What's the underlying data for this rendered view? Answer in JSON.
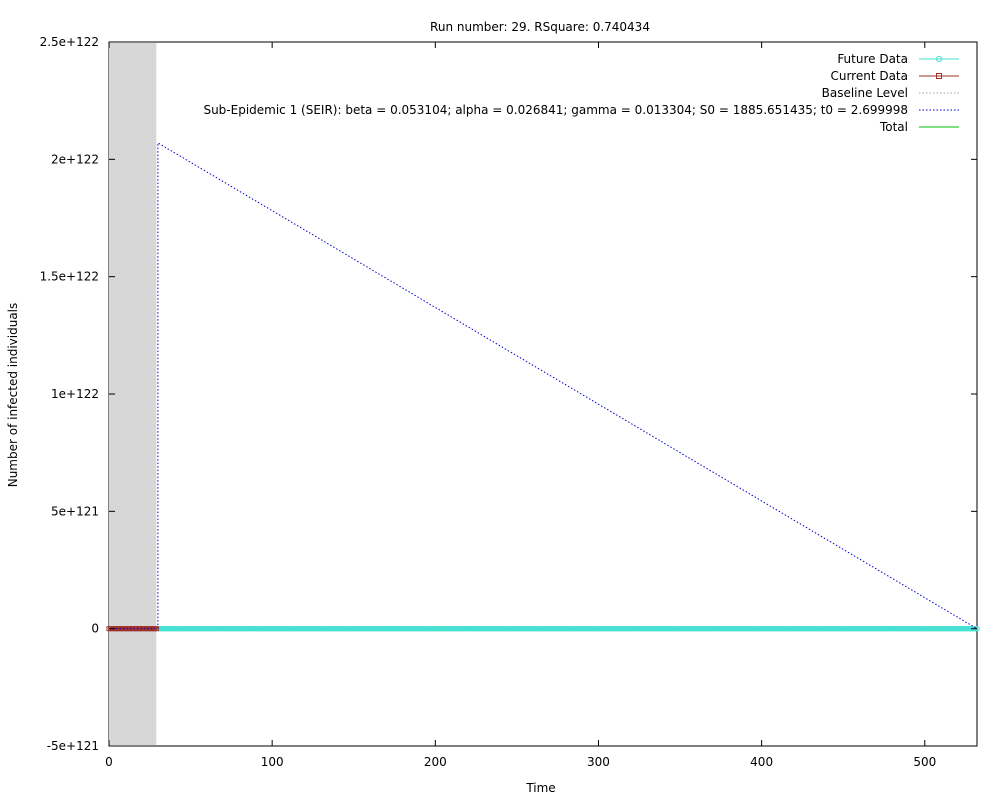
{
  "chart_data": {
    "type": "line",
    "title": "Run number: 29. RSquare: 0.740434",
    "xlabel": "Time",
    "ylabel": "Number of infected individuals",
    "xlim": [
      0,
      532
    ],
    "ylim": [
      -5e+121,
      2.5e+122
    ],
    "x_ticks": [
      {
        "value": 0,
        "label": "0"
      },
      {
        "value": 100,
        "label": "100"
      },
      {
        "value": 200,
        "label": "200"
      },
      {
        "value": 300,
        "label": "300"
      },
      {
        "value": 400,
        "label": "400"
      },
      {
        "value": 500,
        "label": "500"
      }
    ],
    "y_ticks": [
      {
        "value": -5e+121,
        "label": "-5e+121"
      },
      {
        "value": 0,
        "label": "0"
      },
      {
        "value": 5e+121,
        "label": "5e+121"
      },
      {
        "value": 1e+122,
        "label": "1e+122"
      },
      {
        "value": 1.5e+122,
        "label": "1.5e+122"
      },
      {
        "value": 2e+122,
        "label": "2e+122"
      },
      {
        "value": 2.5e+122,
        "label": "2.5e+122"
      }
    ],
    "grid": false,
    "legend_position": "top-right",
    "shaded_region": {
      "x_start": 0,
      "x_end": 29,
      "color": "#d7d7d7"
    },
    "series": [
      {
        "name": "Future Data",
        "style": "line-circles",
        "color": "#40e0d0",
        "x_start": 30,
        "x_end": 532,
        "value": 0
      },
      {
        "name": "Current Data",
        "style": "line-squares",
        "color": "#a0302a",
        "x_start": 0,
        "x_end": 29,
        "value": 0
      },
      {
        "name": "Baseline Level",
        "style": "dotted",
        "color": "#a0a0a0",
        "points": []
      },
      {
        "name": "Sub-Epidemic 1 (SEIR): beta = 0.053104; alpha = 0.026841; gamma = 0.013304; S0 = 1885.651435; t0 = 2.699998",
        "style": "dotted",
        "color": "#0000cd",
        "points": [
          [
            0,
            0
          ],
          [
            30,
            0
          ],
          [
            30,
            2.07e+122
          ],
          [
            532,
            0
          ]
        ]
      },
      {
        "name": "Total",
        "style": "solid",
        "color": "#00c000",
        "points": []
      }
    ]
  }
}
